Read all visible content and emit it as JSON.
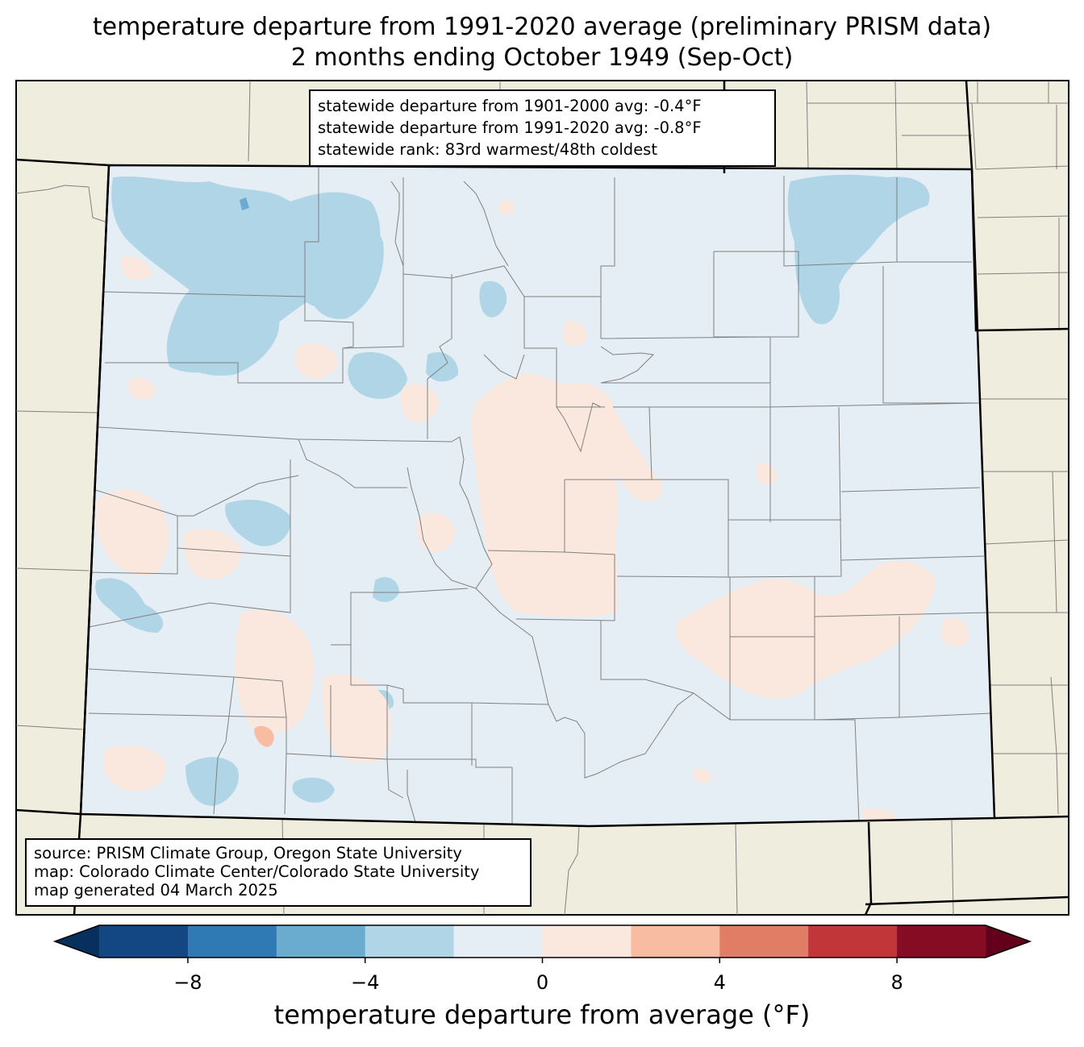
{
  "title": {
    "line1": "temperature departure from 1991-2020 average (preliminary PRISM data)",
    "line2": "2 months ending October 1949 (Sep-Oct)"
  },
  "stats": {
    "line1": "statewide departure from 1901-2000 avg: -0.4°F",
    "line2": "statewide departure from 1991-2020 avg: -0.8°F",
    "line3": "statewide rank: 83rd warmest/48th coldest"
  },
  "source": {
    "line1": "source: PRISM Climate Group, Oregon State University",
    "line2": "map: Colorado Climate Center/Colorado State University",
    "line3": "map generated 04 March 2025"
  },
  "colorbar": {
    "label": "temperature departure from average (°F)",
    "min": -10,
    "max": 10,
    "bounds": [
      -10,
      -8,
      -6,
      -4,
      -2,
      0,
      2,
      4,
      6,
      8,
      10
    ],
    "colors": [
      "#124784",
      "#2f79b5",
      "#6aacd0",
      "#b0d5e6",
      "#e5eef5",
      "#fae8de",
      "#f8bca2",
      "#e27d65",
      "#c13639",
      "#860c23"
    ],
    "under_color": "#08305e",
    "over_color": "#63001c",
    "ticks": [
      {
        "value": -8,
        "label": "−8"
      },
      {
        "value": -4,
        "label": "−4"
      },
      {
        "value": 0,
        "label": "0"
      },
      {
        "value": 4,
        "label": "4"
      },
      {
        "value": 8,
        "label": "8"
      }
    ]
  },
  "map_colors": {
    "background_land": "#efedde",
    "state_fill": "#e5eef5",
    "warm_anomaly": "#fae8de",
    "cool_anomaly": "#b0d5e6",
    "strong_cool": "#6aacd0",
    "strong_warm": "#f8bca2",
    "county_lines": "#808080",
    "state_lines": "#000000"
  }
}
